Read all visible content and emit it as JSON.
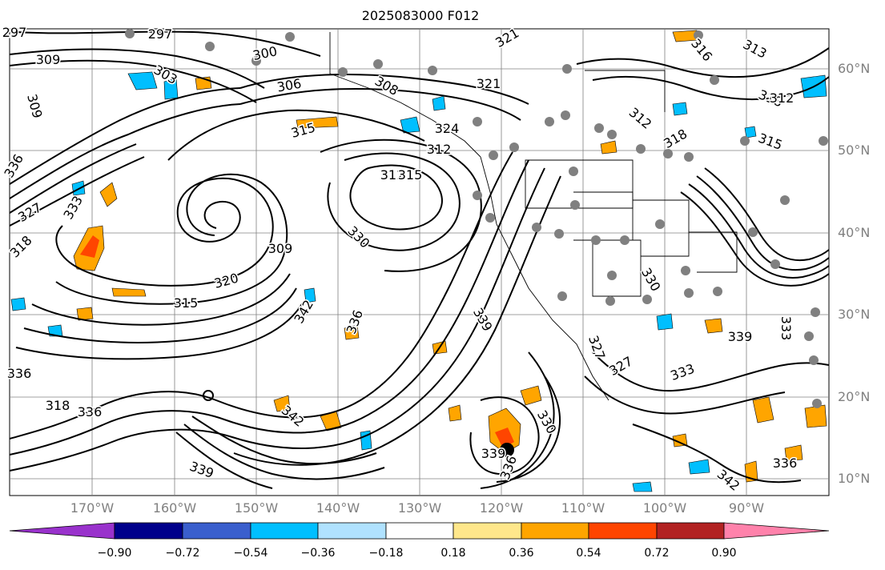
{
  "title": "2025083000 F012",
  "lat_labels": [
    "60°N",
    "50°N",
    "40°N",
    "30°N",
    "20°N",
    "10°N"
  ],
  "lon_labels": [
    "170°W",
    "160°W",
    "150°W",
    "140°W",
    "130°W",
    "120°W",
    "110°W",
    "100°W",
    "90°W"
  ],
  "contour_labels": [
    "297",
    "297",
    "300",
    "303",
    "309",
    "306",
    "308",
    "321",
    "321",
    "313",
    "316",
    "309",
    "315",
    "324",
    "312",
    "315",
    "312",
    "318",
    "312",
    "318",
    "315",
    "312",
    "336",
    "327",
    "333",
    "318",
    "330",
    "309",
    "320",
    "315",
    "342",
    "336",
    "330",
    "339",
    "327",
    "327",
    "336",
    "318",
    "336",
    "342",
    "339",
    "339",
    "336",
    "330",
    "333",
    "333",
    "339",
    "342",
    "336"
  ],
  "colorbar": {
    "tick_labels": [
      "−0.90",
      "−0.72",
      "−0.54",
      "−0.36",
      "−0.18",
      "0.18",
      "0.36",
      "0.54",
      "0.72",
      "0.90"
    ],
    "colors": [
      "#9932cc",
      "#00008b",
      "#3a5fcd",
      "#00bfff",
      "#b0e2ff",
      "#ffffff",
      "#ffe78b",
      "#ffa500",
      "#ff4500",
      "#b22222",
      "#ff82ab"
    ]
  },
  "colors": {
    "contour": "#000000",
    "grid": "#808080",
    "marker": "#808080",
    "positive_fill": "#ffa500",
    "negative_fill": "#00bfff",
    "axis_label": "#808080"
  }
}
